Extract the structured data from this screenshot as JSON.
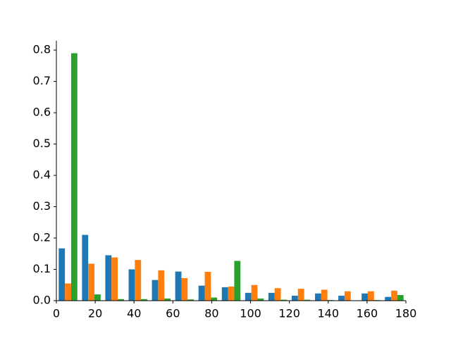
{
  "chart_data": {
    "type": "histogram",
    "bins": [
      0,
      12,
      24,
      36,
      48,
      60,
      72,
      84,
      96,
      108,
      120,
      132,
      144,
      156,
      168,
      180
    ],
    "series": [
      {
        "color": "#1f77b4",
        "values": [
          0.167,
          0.21,
          0.145,
          0.1,
          0.066,
          0.093,
          0.048,
          0.043,
          0.025,
          0.025,
          0.016,
          0.023,
          0.016,
          0.023,
          0.012
        ]
      },
      {
        "color": "#ff7f0e",
        "values": [
          0.055,
          0.118,
          0.138,
          0.13,
          0.097,
          0.072,
          0.092,
          0.045,
          0.05,
          0.04,
          0.038,
          0.035,
          0.03,
          0.03,
          0.032
        ]
      },
      {
        "color": "#2ca02c",
        "values": [
          0.79,
          0.02,
          0.005,
          0.005,
          0.007,
          0.004,
          0.01,
          0.127,
          0.007,
          0.003,
          0.003,
          0.002,
          0.001,
          0.002,
          0.018
        ]
      }
    ],
    "rwidth": 0.8,
    "xlim": [
      0,
      180
    ],
    "xticks": [
      0,
      20,
      40,
      60,
      80,
      100,
      120,
      140,
      160,
      180
    ],
    "ylim": [
      0,
      0.8295
    ],
    "yticks": [
      {
        "value": 0,
        "label": "0.0"
      },
      0.1,
      0.2,
      0.3,
      0.4,
      0.5,
      0.6,
      0.7,
      0.8
    ]
  }
}
